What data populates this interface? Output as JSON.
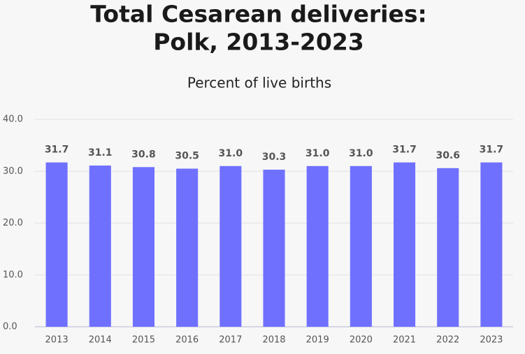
{
  "chart_data": {
    "type": "bar",
    "title": [
      "Total Cesarean deliveries:",
      "Polk, 2013-2023"
    ],
    "subtitle": "Percent of live births",
    "categories": [
      "2013",
      "2014",
      "2015",
      "2016",
      "2017",
      "2018",
      "2019",
      "2020",
      "2021",
      "2022",
      "2023"
    ],
    "values": [
      31.7,
      31.1,
      30.8,
      30.5,
      31.0,
      30.3,
      31.0,
      31.0,
      31.7,
      30.6,
      31.7
    ],
    "value_labels": [
      "31.7",
      "31.1",
      "30.8",
      "30.5",
      "31.0",
      "30.3",
      "31.0",
      "31.0",
      "31.7",
      "30.6",
      "31.7"
    ],
    "color": "#7070ff",
    "ylim": [
      0,
      40
    ],
    "yticks": [
      {
        "value": 0,
        "label": "0.0"
      },
      {
        "value": 10,
        "label": "10.0"
      },
      {
        "value": 20,
        "label": "20.0"
      },
      {
        "value": 30,
        "label": "30.0"
      },
      {
        "value": 40,
        "label": "40.0"
      }
    ],
    "grid": true
  }
}
